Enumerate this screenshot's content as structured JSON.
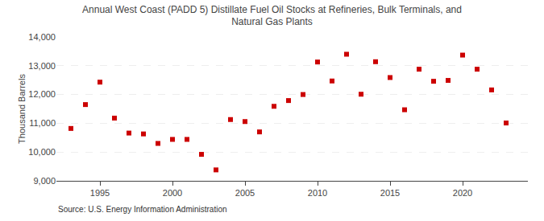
{
  "chart_data": {
    "type": "scatter",
    "title": "Annual West Coast (PADD 5) Distillate Fuel Oil Stocks at Refineries, Bulk Terminals, and\nNatural Gas Plants",
    "ylabel": "Thousand Barrels",
    "annotations": [
      "Source: U.S. Energy Information Administration"
    ],
    "x": [
      1993,
      1994,
      1995,
      1996,
      1997,
      1998,
      1999,
      2000,
      2001,
      2002,
      2003,
      2004,
      2005,
      2006,
      2007,
      2008,
      2009,
      2010,
      2011,
      2012,
      2013,
      2014,
      2015,
      2016,
      2017,
      2018,
      2019,
      2020,
      2021,
      2022,
      2023
    ],
    "values": [
      10820,
      11650,
      12430,
      11180,
      10660,
      10630,
      10300,
      10440,
      10440,
      9920,
      9380,
      11130,
      11060,
      10700,
      11590,
      11790,
      12000,
      13130,
      12470,
      13400,
      12010,
      13140,
      12590,
      11470,
      12880,
      12460,
      12490,
      13370,
      12880,
      12160,
      11010
    ],
    "color": "#cc0000",
    "marker": "square",
    "xlim": [
      1992.0,
      2024.5
    ],
    "xticks": [
      1995,
      2000,
      2005,
      2010,
      2015,
      2020
    ],
    "ylim": [
      9000,
      14000
    ],
    "yticks": [
      {
        "value": 9000,
        "label": "9,000"
      },
      {
        "value": 10000,
        "label": "10,000"
      },
      {
        "value": 11000,
        "label": "11,000"
      },
      {
        "value": 12000,
        "label": "12,000"
      },
      {
        "value": 13000,
        "label": "13,000"
      },
      {
        "value": 14000,
        "label": "14,000"
      }
    ],
    "grid": "y"
  }
}
